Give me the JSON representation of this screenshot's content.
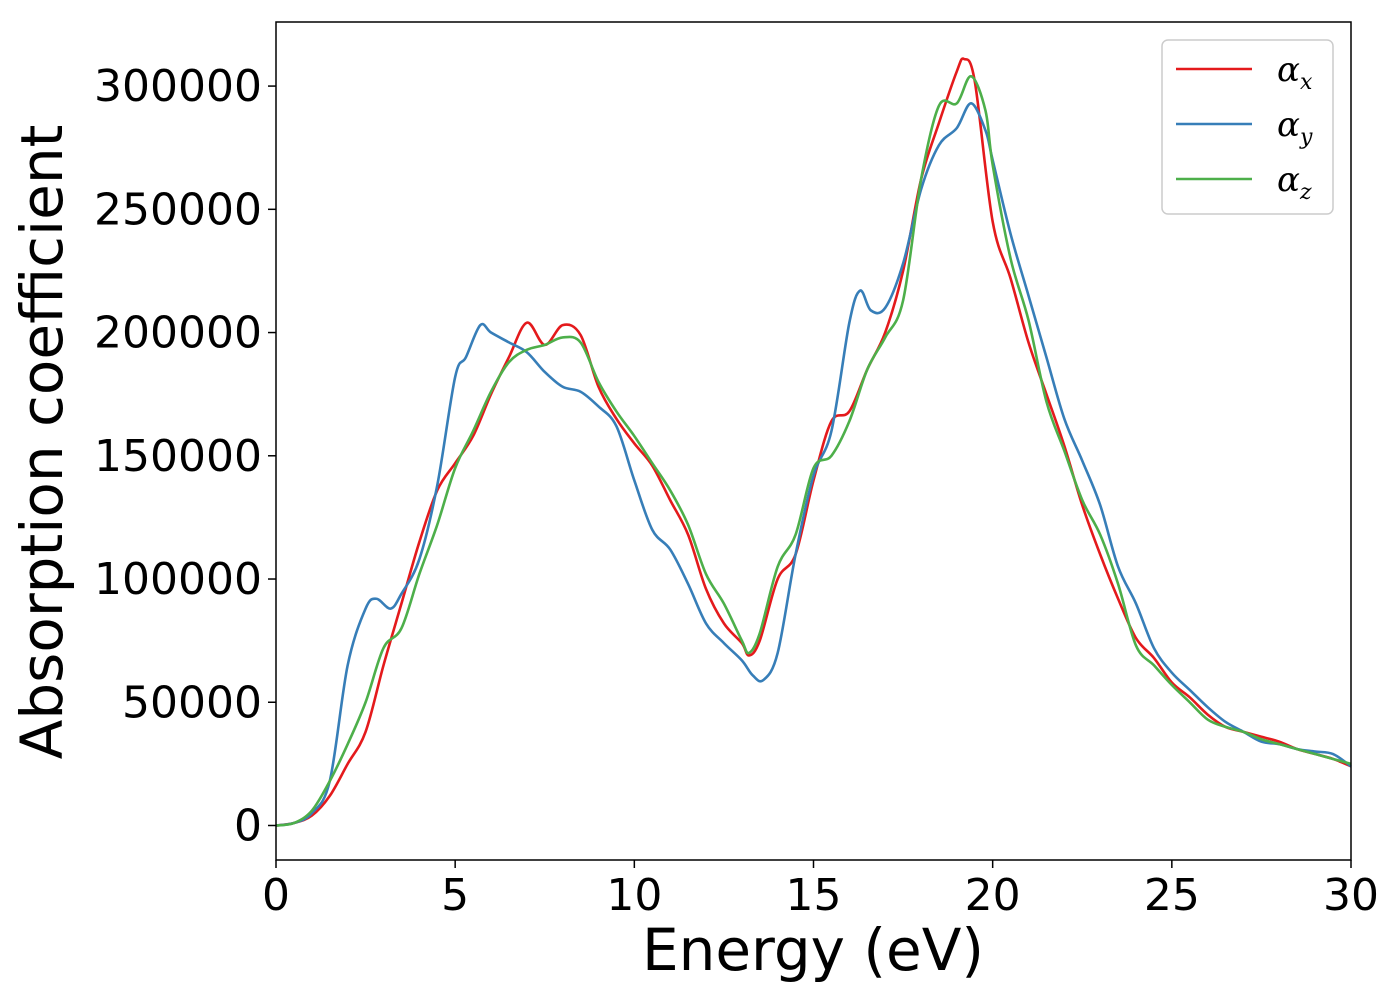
{
  "chart_data": {
    "type": "line",
    "xlabel": "Energy (eV)",
    "ylabel": "Absorption coefficient",
    "xlim": [
      0,
      30
    ],
    "ylim": [
      -14000,
      326000
    ],
    "xticks": [
      0,
      5,
      10,
      15,
      20,
      25,
      30
    ],
    "yticks": [
      0,
      50000,
      100000,
      150000,
      200000,
      250000,
      300000
    ],
    "grid": false,
    "legend_position": "top-right",
    "series": [
      {
        "name": "α_x",
        "symbol": "α",
        "subscript": "x",
        "color": "#e41a1c",
        "x": [
          0,
          0.5,
          1.0,
          1.5,
          2.0,
          2.5,
          3.0,
          3.5,
          4.0,
          4.5,
          5.0,
          5.5,
          6.0,
          6.5,
          7.0,
          7.5,
          8.0,
          8.5,
          9.0,
          9.5,
          10.0,
          10.5,
          11.0,
          11.5,
          12.0,
          12.5,
          13.0,
          13.2,
          13.5,
          14.0,
          14.5,
          15.0,
          15.5,
          16.0,
          16.5,
          17.0,
          17.5,
          18.0,
          18.5,
          19.0,
          19.2,
          19.5,
          20.0,
          20.5,
          21.0,
          21.5,
          22.0,
          22.5,
          23.0,
          23.5,
          24.0,
          24.5,
          25.0,
          25.5,
          26.0,
          26.5,
          27.0,
          27.5,
          28.0,
          28.5,
          29.0,
          29.5,
          30.0
        ],
        "y": [
          0,
          1000,
          4000,
          12000,
          25000,
          38000,
          65000,
          90000,
          115000,
          136000,
          147000,
          158000,
          175000,
          190000,
          204000,
          195000,
          203000,
          199000,
          178000,
          165000,
          155000,
          146000,
          132000,
          118000,
          96000,
          82000,
          74000,
          69000,
          75000,
          100000,
          110000,
          140000,
          164000,
          168000,
          185000,
          200000,
          225000,
          262000,
          285000,
          306000,
          311000,
          302000,
          245000,
          222000,
          196000,
          175000,
          154000,
          130000,
          110000,
          92000,
          76000,
          68000,
          58000,
          52000,
          45000,
          40000,
          38000,
          36000,
          34000,
          31000,
          29000,
          27000,
          24000
        ]
      },
      {
        "name": "α_y",
        "symbol": "α",
        "subscript": "y",
        "color": "#377eb8",
        "x": [
          0,
          0.5,
          1.0,
          1.5,
          2.0,
          2.5,
          2.8,
          3.2,
          3.5,
          4.0,
          4.5,
          5.0,
          5.3,
          5.7,
          6.0,
          6.5,
          7.0,
          7.5,
          8.0,
          8.5,
          9.0,
          9.5,
          10.0,
          10.5,
          11.0,
          11.5,
          12.0,
          12.5,
          13.0,
          13.3,
          13.6,
          14.0,
          14.5,
          15.0,
          15.5,
          16.0,
          16.3,
          16.6,
          17.0,
          17.5,
          18.0,
          18.5,
          19.0,
          19.4,
          19.8,
          20.0,
          20.5,
          21.0,
          21.5,
          22.0,
          22.5,
          23.0,
          23.5,
          24.0,
          24.5,
          25.0,
          25.5,
          26.0,
          26.5,
          27.0,
          27.5,
          28.0,
          28.5,
          29.0,
          29.5,
          30.0
        ],
        "y": [
          0,
          1000,
          5000,
          18000,
          65000,
          88000,
          92000,
          88000,
          94000,
          108000,
          138000,
          182000,
          190000,
          203000,
          200000,
          196000,
          192000,
          184000,
          178000,
          176000,
          170000,
          162000,
          140000,
          120000,
          112000,
          98000,
          82000,
          74000,
          67000,
          61000,
          59000,
          70000,
          110000,
          142000,
          160000,
          204000,
          217000,
          209000,
          210000,
          228000,
          258000,
          276000,
          283000,
          293000,
          282000,
          270000,
          240000,
          215000,
          190000,
          165000,
          148000,
          130000,
          105000,
          90000,
          72000,
          62000,
          55000,
          48000,
          42000,
          38000,
          34000,
          33000,
          31000,
          30000,
          29000,
          24000
        ]
      },
      {
        "name": "α_z",
        "symbol": "α",
        "subscript": "z",
        "color": "#4daf4a",
        "x": [
          0,
          0.5,
          1.0,
          1.5,
          2.0,
          2.5,
          3.0,
          3.5,
          4.0,
          4.5,
          5.0,
          5.5,
          6.0,
          6.5,
          7.0,
          7.5,
          8.0,
          8.5,
          9.0,
          9.5,
          10.0,
          10.5,
          11.0,
          11.5,
          12.0,
          12.5,
          13.0,
          13.2,
          13.5,
          14.0,
          14.5,
          15.0,
          15.5,
          16.0,
          16.5,
          17.0,
          17.5,
          18.0,
          18.5,
          19.0,
          19.4,
          19.8,
          20.0,
          20.5,
          21.0,
          21.5,
          22.0,
          22.5,
          23.0,
          23.5,
          24.0,
          24.5,
          25.0,
          25.5,
          26.0,
          26.5,
          27.0,
          27.5,
          28.0,
          28.5,
          29.0,
          29.5,
          30.0
        ],
        "y": [
          0,
          1000,
          6000,
          18000,
          33000,
          50000,
          72000,
          80000,
          102000,
          122000,
          145000,
          160000,
          176000,
          188000,
          193000,
          195000,
          198000,
          196000,
          180000,
          168000,
          158000,
          147000,
          136000,
          122000,
          102000,
          90000,
          75000,
          70000,
          78000,
          105000,
          118000,
          145000,
          150000,
          164000,
          185000,
          198000,
          213000,
          262000,
          292000,
          293000,
          304000,
          290000,
          268000,
          230000,
          205000,
          172000,
          152000,
          132000,
          118000,
          98000,
          73000,
          65000,
          57000,
          50000,
          43000,
          40000,
          38000,
          35000,
          33000,
          31000,
          29000,
          27000,
          25000
        ]
      }
    ]
  }
}
